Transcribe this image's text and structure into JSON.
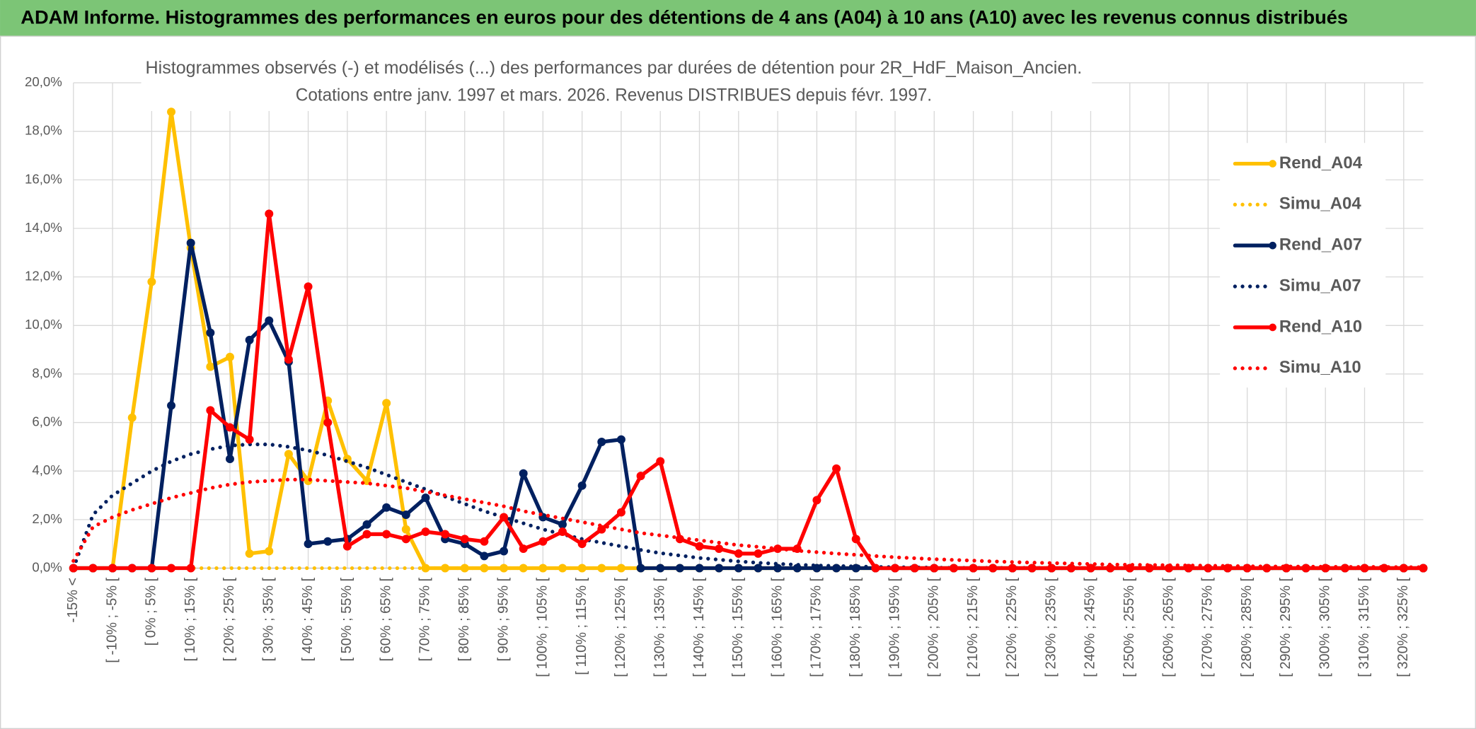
{
  "header": {
    "title": "ADAM Informe. Histogrammes des performances en euros pour des détentions de 4 ans (A04) à 10 ans (A10) avec les revenus connus distribués"
  },
  "chart_data": {
    "type": "line",
    "title": "Histogrammes observés (-) et modélisés (...) des performances par durées de détention pour 2R_HdF_Maison_Ancien.",
    "subtitle": "Cotations entre janv. 1997 et mars. 2026. Revenus DISTRIBUES depuis févr. 1997.",
    "categories": [
      "-15% <",
      null,
      "[ -10% ; -5% [",
      null,
      "[ 0% ; 5% [",
      null,
      "[ 10% ; 15% [",
      null,
      "[ 20% ; 25% [",
      null,
      "[ 30% ; 35% [",
      null,
      "[ 40% ; 45% [",
      null,
      "[ 50% ; 55% [",
      null,
      "[ 60% ; 65% [",
      null,
      "[ 70% ; 75% [",
      null,
      "[ 80% ; 85% [",
      null,
      "[ 90% ; 95% [",
      null,
      "[ 100% ; 105% [",
      null,
      "[ 110% ; 115% [",
      null,
      "[ 120% ; 125% [",
      null,
      "[ 130% ; 135% [",
      null,
      "[ 140% ; 145% [",
      null,
      "[ 150% ; 155% [",
      null,
      "[ 160% ; 165% [",
      null,
      "[ 170% ; 175% [",
      null,
      "[ 180% ; 185% [",
      null,
      "[ 190% ; 195% [",
      null,
      "[ 200% ; 205% [",
      null,
      "[ 210% ; 215% [",
      null,
      "[ 220% ; 225% [",
      null,
      "[ 230% ; 235% [",
      null,
      "[ 240% ; 245% [",
      null,
      "[ 250% ; 255% [",
      null,
      "[ 260% ; 265% [",
      null,
      "[ 270% ; 275% [",
      null,
      "[ 280% ; 285% [",
      null,
      "[ 290% ; 295% [",
      null,
      "[ 300% ; 305% [",
      null,
      "[ 310% ; 315% [",
      null,
      "[ 320% ; 325% [",
      null
    ],
    "series": [
      {
        "name": "Rend_A04",
        "color": "#ffc000",
        "style": "solid",
        "markers": true,
        "values": [
          0,
          0,
          0,
          6.2,
          11.8,
          18.8,
          13.2,
          8.3,
          8.7,
          0.6,
          0.7,
          4.7,
          3.6,
          6.9,
          4.5,
          3.6,
          6.8,
          1.6,
          0,
          0,
          0,
          0,
          0,
          0,
          0,
          0,
          0,
          0,
          0,
          0,
          0,
          0,
          0,
          0,
          0,
          0,
          0,
          0,
          0,
          0,
          0,
          0,
          0,
          0,
          0,
          0,
          0,
          0,
          0,
          0,
          0,
          0,
          0,
          0,
          0,
          0,
          0,
          0,
          0,
          0,
          0,
          0,
          0,
          0,
          0,
          0,
          0,
          0,
          0,
          0
        ]
      },
      {
        "name": "Simu_A04",
        "color": "#ffc000",
        "style": "dotted",
        "markers": false,
        "values": [
          0,
          0,
          0,
          0,
          0,
          0,
          0,
          0,
          0,
          0,
          0,
          0,
          0,
          0,
          0,
          0,
          0,
          0,
          0,
          0,
          0,
          0,
          0,
          0,
          0,
          0,
          0,
          0,
          0,
          0,
          0,
          0,
          0,
          0,
          0,
          0,
          0,
          0,
          0,
          0,
          0,
          0,
          0,
          0,
          0,
          0,
          0,
          0,
          0,
          0,
          0,
          0,
          0,
          0,
          0,
          0,
          0,
          0,
          0,
          0,
          0,
          0,
          0,
          0,
          0,
          0,
          0,
          0,
          0,
          0
        ]
      },
      {
        "name": "Rend_A07",
        "color": "#002060",
        "style": "solid",
        "markers": true,
        "values": [
          0,
          0,
          0,
          0,
          0,
          6.7,
          13.4,
          9.7,
          4.5,
          9.4,
          10.2,
          8.5,
          1.0,
          1.1,
          1.2,
          1.8,
          2.5,
          2.2,
          2.9,
          1.2,
          1.0,
          0.5,
          0.7,
          3.9,
          2.1,
          1.8,
          3.4,
          5.2,
          5.3,
          0,
          0,
          0,
          0,
          0,
          0,
          0,
          0,
          0,
          0,
          0,
          0,
          0,
          0,
          0,
          0,
          0,
          0,
          0,
          0,
          0,
          0,
          0,
          0,
          0,
          0,
          0,
          0,
          0,
          0,
          0,
          0,
          0,
          0,
          0,
          0,
          0,
          0,
          0,
          0,
          0
        ]
      },
      {
        "name": "Simu_A07",
        "color": "#002060",
        "style": "dotted",
        "markers": false,
        "values": [
          0,
          2.2,
          3.0,
          3.5,
          4.0,
          4.4,
          4.7,
          4.9,
          5.05,
          5.1,
          5.1,
          5.0,
          4.85,
          4.65,
          4.4,
          4.15,
          3.85,
          3.55,
          3.25,
          2.95,
          2.65,
          2.35,
          2.1,
          1.85,
          1.6,
          1.4,
          1.2,
          1.05,
          0.9,
          0.75,
          0.62,
          0.52,
          0.42,
          0.35,
          0.28,
          0.22,
          0.18,
          0.14,
          0.11,
          0.09,
          0.07,
          0.05,
          0.04,
          0.03,
          0.02,
          0.01,
          0.01,
          0.01,
          0.01,
          0.01,
          0,
          0,
          0,
          0,
          0,
          0,
          0,
          0,
          0,
          0,
          0,
          0,
          0,
          0,
          0,
          0,
          0,
          0,
          0,
          0
        ]
      },
      {
        "name": "Rend_A10",
        "color": "#ff0000",
        "style": "solid",
        "markers": true,
        "values": [
          0,
          0,
          0,
          0,
          0,
          0,
          0,
          6.5,
          5.8,
          5.3,
          14.6,
          8.6,
          11.6,
          6.0,
          0.9,
          1.4,
          1.4,
          1.2,
          1.5,
          1.4,
          1.2,
          1.1,
          2.1,
          0.8,
          1.1,
          1.5,
          1.0,
          1.6,
          2.3,
          3.8,
          4.4,
          1.2,
          0.9,
          0.8,
          0.6,
          0.6,
          0.8,
          0.8,
          2.8,
          4.1,
          1.2,
          0,
          0,
          0,
          0,
          0,
          0,
          0,
          0,
          0,
          0,
          0,
          0,
          0,
          0,
          0,
          0,
          0,
          0,
          0,
          0,
          0,
          0,
          0,
          0,
          0,
          0,
          0,
          0,
          0
        ]
      },
      {
        "name": "Simu_A10",
        "color": "#ff0000",
        "style": "dotted",
        "markers": false,
        "values": [
          0.3,
          1.7,
          2.1,
          2.4,
          2.65,
          2.9,
          3.1,
          3.3,
          3.45,
          3.55,
          3.6,
          3.65,
          3.65,
          3.6,
          3.55,
          3.5,
          3.4,
          3.3,
          3.15,
          3.0,
          2.85,
          2.7,
          2.55,
          2.35,
          2.2,
          2.05,
          1.9,
          1.75,
          1.6,
          1.45,
          1.35,
          1.25,
          1.15,
          1.05,
          0.95,
          0.88,
          0.8,
          0.72,
          0.66,
          0.6,
          0.55,
          0.5,
          0.45,
          0.41,
          0.37,
          0.34,
          0.31,
          0.28,
          0.25,
          0.23,
          0.21,
          0.19,
          0.17,
          0.15,
          0.14,
          0.13,
          0.12,
          0.11,
          0.1,
          0.09,
          0.08,
          0.07,
          0.07,
          0.06,
          0.06,
          0.05,
          0.05,
          0.05,
          0.04,
          0.04
        ]
      }
    ],
    "ylim": [
      0,
      20
    ],
    "yticks": [
      {
        "value": 0,
        "label": "0,0%"
      },
      {
        "value": 2,
        "label": "2,0%"
      },
      {
        "value": 4,
        "label": "4,0%"
      },
      {
        "value": 6,
        "label": "6,0%"
      },
      {
        "value": 8,
        "label": "8,0%"
      },
      {
        "value": 10,
        "label": "10,0%"
      },
      {
        "value": 12,
        "label": "12,0%"
      },
      {
        "value": 14,
        "label": "14,0%"
      },
      {
        "value": 16,
        "label": "16,0%"
      },
      {
        "value": 18,
        "label": "18,0%"
      },
      {
        "value": 20,
        "label": "20,0%"
      }
    ],
    "grid": true,
    "legend": "right"
  }
}
